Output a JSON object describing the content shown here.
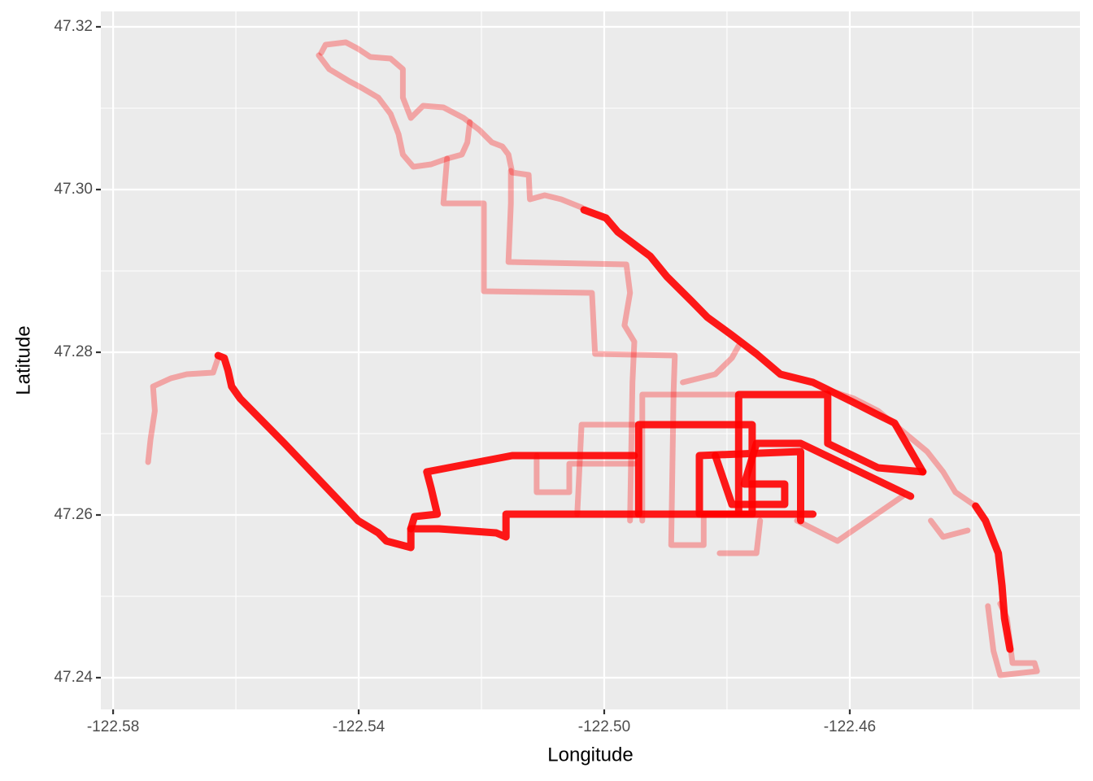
{
  "chart_data": {
    "type": "path",
    "x_label": "Longitude",
    "y_label": "Latitude",
    "xlim": [
      -122.582,
      -122.4225
    ],
    "ylim": [
      47.2361,
      47.3219
    ],
    "xticks": [
      -122.58,
      -122.54,
      {
        "value": -122.5,
        "label": "-122.50"
      },
      -122.46
    ],
    "yticks": [
      47.24,
      47.26,
      47.28,
      {
        "value": 47.3,
        "label": "47.30"
      },
      47.32
    ],
    "x_minor_ticks": [
      -122.56,
      -122.52,
      -122.48,
      -122.44
    ],
    "y_minor_ticks": [
      47.25,
      47.27,
      47.29,
      47.31
    ],
    "grid": true,
    "series": [
      {
        "color": "#ff0000",
        "alpha": 0.3,
        "x": [
          -122.5461,
          -122.5454,
          -122.5421,
          -122.5401,
          -122.5381,
          -122.5348,
          -122.5328,
          -122.5328,
          -122.5315,
          -122.5295,
          -122.5262,
          -122.5229,
          -122.5203,
          -122.5183,
          -122.5166,
          -122.5156,
          -122.515,
          -122.5123,
          -122.5121,
          -122.5097,
          -122.507,
          -122.5037
        ],
        "values": [
          47.3168,
          47.3178,
          47.3181,
          47.3173,
          47.3163,
          47.3161,
          47.3148,
          47.3113,
          47.3088,
          47.3103,
          47.3101,
          47.3088,
          47.3073,
          47.3058,
          47.3053,
          47.3043,
          47.3021,
          47.3018,
          47.2988,
          47.2993,
          47.2988,
          47.2978
        ]
      },
      {
        "color": "#ff0000",
        "alpha": 0.3,
        "x": [
          -122.5465,
          -122.5448,
          -122.5415,
          -122.5395,
          -122.5368,
          -122.5348,
          -122.5335,
          -122.5328,
          -122.5311,
          -122.5282,
          -122.5256,
          -122.5232,
          -122.5223,
          -122.5219
        ],
        "values": [
          47.3165,
          47.3148,
          47.3133,
          47.3125,
          47.3113,
          47.3093,
          47.3068,
          47.3043,
          47.3028,
          47.3031,
          47.3038,
          47.3043,
          47.3058,
          47.3083
        ]
      },
      {
        "color": "#ff0000",
        "alpha": 0.3,
        "x": [
          -122.5256,
          -122.5262,
          -122.5196,
          -122.5196,
          -122.502,
          -122.5015,
          -122.4885,
          -122.4887,
          -122.4891,
          -122.4838,
          -122.4838
        ],
        "values": [
          47.3038,
          47.2983,
          47.2983,
          47.2875,
          47.2873,
          47.2798,
          47.2796,
          47.2753,
          47.2563,
          47.2563,
          47.2598
        ]
      },
      {
        "color": "#ff0000",
        "alpha": 0.3,
        "x": [
          -122.5152,
          -122.5152,
          -122.5156,
          -122.4964,
          -122.4958,
          -122.4967,
          -122.4951,
          -122.4954,
          -122.4958
        ],
        "values": [
          47.3023,
          47.2983,
          47.2911,
          47.2908,
          47.2873,
          47.2833,
          47.2813,
          47.2763,
          47.2593
        ]
      },
      {
        "color": "#ff0000",
        "alpha": 0.3,
        "x": [
          -122.5743,
          -122.5739,
          -122.5732,
          -122.5735,
          -122.5706,
          -122.568,
          -122.5637,
          -122.5629
        ],
        "values": [
          47.2665,
          47.2693,
          47.2728,
          47.2758,
          47.2768,
          47.2773,
          47.2775,
          47.2793
        ]
      },
      {
        "color": "#ff0000",
        "alpha": 0.3,
        "x": [
          -122.4375,
          -122.4366,
          -122.4355,
          -122.4295,
          -122.4299,
          -122.4335,
          -122.4344,
          -122.4355
        ],
        "values": [
          47.2488,
          47.2433,
          47.2403,
          47.2408,
          47.2418,
          47.2418,
          47.2473,
          47.2491
        ]
      },
      {
        "color": "#ff0000",
        "alpha": 0.3,
        "x": [
          -122.4633,
          -122.4593,
          -122.4554,
          -122.4514,
          -122.4474,
          -122.4448,
          -122.4428,
          -122.4395
        ],
        "values": [
          47.2753,
          47.2743,
          47.2728,
          47.2703,
          47.2678,
          47.2653,
          47.2628,
          47.2611
        ]
      },
      {
        "color": "#ff0000",
        "alpha": 0.3,
        "x": [
          -122.5044,
          -122.5037,
          -122.4951
        ],
        "values": [
          47.2601,
          47.2711,
          47.2711
        ]
      },
      {
        "color": "#ff0000",
        "alpha": 0.3,
        "x": [
          -122.511,
          -122.511,
          -122.5057,
          -122.5057,
          -122.4951
        ],
        "values": [
          47.2673,
          47.2628,
          47.2628,
          47.2663,
          47.2663
        ]
      },
      {
        "color": "#ff0000",
        "alpha": 0.3,
        "x": [
          -122.4812,
          -122.4752,
          -122.4746
        ],
        "values": [
          47.2553,
          47.2553,
          47.2593
        ]
      },
      {
        "color": "#ff0000",
        "alpha": 0.3,
        "x": [
          -122.4872,
          -122.4819,
          -122.4792,
          -122.4781
        ],
        "values": [
          47.2763,
          47.2773,
          47.2793,
          47.2808
        ]
      },
      {
        "color": "#ff0000",
        "alpha": 0.3,
        "x": [
          -122.4686,
          -122.462,
          -122.4514
        ],
        "values": [
          47.2593,
          47.2568,
          47.2623
        ]
      },
      {
        "color": "#ff0000",
        "alpha": 0.3,
        "x": [
          -122.4468,
          -122.4448,
          -122.4408
        ],
        "values": [
          47.2593,
          47.2573,
          47.2581
        ]
      },
      {
        "color": "#ff0000",
        "alpha": 0.3,
        "x": [
          -122.4938,
          -122.4938,
          -122.4785
        ],
        "values": [
          47.2593,
          47.2748,
          47.2748
        ]
      },
      {
        "color": "#ff0000",
        "alpha": 0.9,
        "x": [
          -122.5629,
          -122.5619,
          -122.5613,
          -122.5607,
          -122.5593,
          -122.5521,
          -122.5401,
          -122.5368,
          -122.5355,
          -122.5315,
          -122.5315,
          -122.5269,
          -122.5176,
          -122.516,
          -122.516,
          -122.4951,
          -122.466
        ],
        "values": [
          47.2796,
          47.2793,
          47.2778,
          47.2758,
          47.2743,
          47.2688,
          47.2593,
          47.2578,
          47.2568,
          47.256,
          47.2583,
          47.2583,
          47.2578,
          47.2573,
          47.2601,
          47.2601,
          47.2601
        ]
      },
      {
        "color": "#ff0000",
        "alpha": 0.9,
        "x": [
          -122.5033,
          -122.4997,
          -122.4978,
          -122.4925,
          -122.4898,
          -122.4858,
          -122.4832,
          -122.4792,
          -122.4752,
          -122.4713,
          -122.466,
          -122.4633,
          -122.4593,
          -122.4554,
          -122.4527,
          -122.4481
        ],
        "values": [
          47.2975,
          47.2965,
          47.2948,
          47.2918,
          47.2893,
          47.2863,
          47.2843,
          47.2821,
          47.2798,
          47.2773,
          47.2763,
          47.2753,
          47.2738,
          47.2723,
          47.2713,
          47.2653
        ]
      },
      {
        "color": "#ff0000",
        "alpha": 0.9,
        "x": [
          -122.4395,
          -122.4379,
          -122.4358,
          -122.4352,
          -122.4348,
          -122.4339
        ],
        "values": [
          47.2611,
          47.2593,
          47.2553,
          47.2513,
          47.2473,
          47.2435
        ]
      },
      {
        "color": "#ff0000",
        "alpha": 0.9,
        "x": [
          -122.4944,
          -122.4944,
          -122.4759,
          -122.4759,
          -122.4845,
          -122.4845,
          -122.468,
          -122.468
        ],
        "values": [
          47.2601,
          47.2711,
          47.2711,
          47.2601,
          47.2601,
          47.2673,
          47.2678,
          47.2593
        ]
      },
      {
        "color": "#ff0000",
        "alpha": 0.9,
        "x": [
          -122.4781,
          -122.4781,
          -122.4636,
          -122.4636,
          -122.4554,
          -122.4481
        ],
        "values": [
          47.2603,
          47.2748,
          47.2748,
          47.2688,
          47.2658,
          47.2653
        ]
      },
      {
        "color": "#ff0000",
        "alpha": 0.9,
        "x": [
          -122.4819,
          -122.4792,
          -122.4706,
          -122.4706,
          -122.4772,
          -122.4752,
          -122.468,
          -122.4501
        ],
        "values": [
          47.2673,
          47.2613,
          47.2613,
          47.2638,
          47.2638,
          47.2688,
          47.2688,
          47.2623
        ]
      },
      {
        "color": "#ff0000",
        "alpha": 0.9,
        "x": [
          -122.5315,
          -122.5309,
          -122.5272,
          -122.5282,
          -122.5289,
          -122.515,
          -122.4951
        ],
        "values": [
          47.2583,
          47.2598,
          47.2601,
          47.2633,
          47.2653,
          47.2673,
          47.2673
        ]
      }
    ]
  }
}
